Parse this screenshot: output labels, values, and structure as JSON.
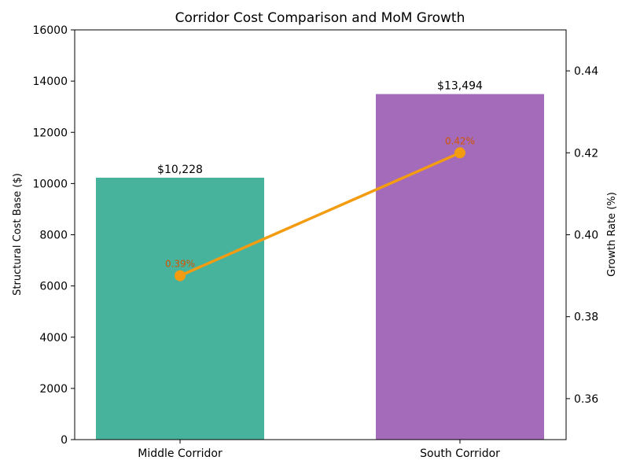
{
  "chart_data": {
    "type": "bar+line",
    "title": "Corridor Cost Comparison and MoM Growth",
    "categories": [
      "Middle Corridor",
      "South Corridor"
    ],
    "bar_series": {
      "values": [
        10228,
        13494
      ],
      "data_labels": [
        "$10,228",
        "$13,494"
      ],
      "colors": [
        "#48b39d",
        "#a46bbb"
      ]
    },
    "line_series": {
      "values": [
        0.39,
        0.42
      ],
      "data_labels": [
        "0.39%",
        "0.42%"
      ],
      "color": "#f39c12",
      "label_color": "#d35400"
    },
    "ylabel": "Structural Cost Base ($)",
    "y2label": "Growth Rate (%)",
    "ylim": [
      0,
      16000
    ],
    "y2lim": [
      0.35,
      0.45
    ],
    "yticks": [
      "0",
      "2000",
      "4000",
      "6000",
      "8000",
      "10000",
      "12000",
      "14000",
      "16000"
    ],
    "y2ticks": [
      "0.36",
      "0.38",
      "0.40",
      "0.42",
      "0.44"
    ],
    "grid": false,
    "legend": "none"
  }
}
